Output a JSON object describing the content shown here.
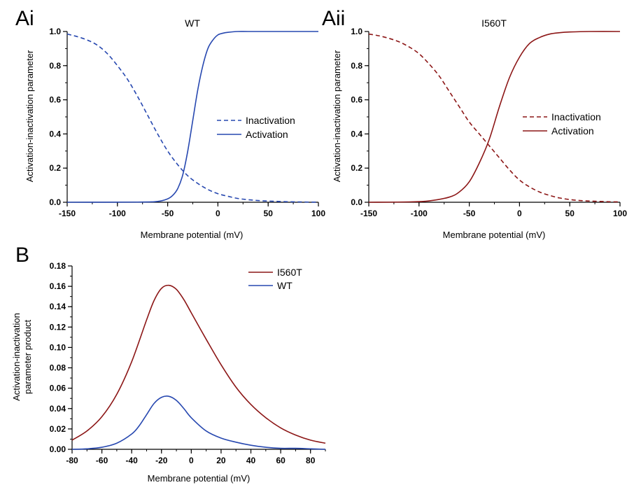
{
  "colors": {
    "wt": "#2748b0",
    "i560t": "#8c1616",
    "axis": "#000000"
  },
  "panels": {
    "ai": {
      "letter": "Ai",
      "title": "WT",
      "xlabel": "Membrane potential (mV)",
      "ylabel": "Activation-inactivation parameter",
      "legend": {
        "inactivation": "Inactivation",
        "activation": "Activation"
      }
    },
    "aii": {
      "letter": "Aii",
      "title": "I560T",
      "xlabel": "Membrane potential (mV)",
      "ylabel": "Activation-inactivation parameter",
      "legend": {
        "inactivation": "Inactivation",
        "activation": "Activation"
      }
    },
    "b": {
      "letter": "B",
      "xlabel": "Membrane potential (mV)",
      "ylabel_line1": "Activation-inactivation",
      "ylabel_line2": "parameter product",
      "legend": {
        "i560t": "I560T",
        "wt": "WT"
      }
    }
  },
  "chart_data": [
    {
      "panel": "Ai",
      "type": "line",
      "title": "WT",
      "xlabel": "Membrane potential (mV)",
      "ylabel": "Activation-inactivation parameter",
      "xlim": [
        -150,
        100
      ],
      "ylim": [
        0,
        1.0
      ],
      "xticks": [
        "-150",
        "-100",
        "-50",
        "0",
        "50",
        "100"
      ],
      "yticks": [
        "0.0",
        "0.2",
        "0.4",
        "0.6",
        "0.8",
        "1.0"
      ],
      "legend_position": "middle-right",
      "series": [
        {
          "name": "Inactivation",
          "style": "dashed",
          "color": "#2748b0",
          "x": [
            -150,
            -140,
            -130,
            -120,
            -110,
            -100,
            -90,
            -80,
            -70,
            -60,
            -50,
            -40,
            -30,
            -20,
            -10,
            0,
            10,
            20,
            30,
            40,
            50,
            60,
            70,
            80,
            90,
            100
          ],
          "y": [
            0.985,
            0.97,
            0.95,
            0.92,
            0.87,
            0.8,
            0.72,
            0.62,
            0.51,
            0.4,
            0.3,
            0.22,
            0.155,
            0.11,
            0.075,
            0.05,
            0.035,
            0.022,
            0.015,
            0.01,
            0.007,
            0.005,
            0.003,
            0.002,
            0.001,
            0.001
          ]
        },
        {
          "name": "Activation",
          "style": "solid",
          "color": "#2748b0",
          "x": [
            -150,
            -80,
            -60,
            -50,
            -45,
            -40,
            -35,
            -30,
            -25,
            -20,
            -15,
            -10,
            -5,
            0,
            5,
            10,
            20,
            30,
            50,
            100
          ],
          "y": [
            0.0,
            0.001,
            0.005,
            0.02,
            0.04,
            0.08,
            0.16,
            0.3,
            0.48,
            0.66,
            0.8,
            0.9,
            0.95,
            0.98,
            0.99,
            0.995,
            1.0,
            1.0,
            1.0,
            1.0
          ]
        }
      ]
    },
    {
      "panel": "Aii",
      "type": "line",
      "title": "I560T",
      "xlabel": "Membrane potential (mV)",
      "ylabel": "Activation-inactivation parameter",
      "xlim": [
        -150,
        100
      ],
      "ylim": [
        0,
        1.0
      ],
      "xticks": [
        "-150",
        "-100",
        "-50",
        "0",
        "50",
        "100"
      ],
      "yticks": [
        "0.0",
        "0.2",
        "0.4",
        "0.6",
        "0.8",
        "1.0"
      ],
      "legend_position": "middle-right",
      "series": [
        {
          "name": "Inactivation",
          "style": "dashed",
          "color": "#8c1616",
          "x": [
            -150,
            -140,
            -130,
            -120,
            -110,
            -100,
            -90,
            -80,
            -70,
            -60,
            -50,
            -40,
            -30,
            -20,
            -10,
            0,
            10,
            20,
            30,
            40,
            50,
            60,
            70,
            80,
            90,
            100
          ],
          "y": [
            0.985,
            0.975,
            0.96,
            0.94,
            0.91,
            0.87,
            0.81,
            0.74,
            0.65,
            0.56,
            0.47,
            0.4,
            0.33,
            0.26,
            0.19,
            0.13,
            0.09,
            0.06,
            0.04,
            0.025,
            0.016,
            0.01,
            0.007,
            0.005,
            0.003,
            0.002
          ]
        },
        {
          "name": "Activation",
          "style": "solid",
          "color": "#8c1616",
          "x": [
            -150,
            -110,
            -90,
            -70,
            -60,
            -50,
            -40,
            -30,
            -20,
            -10,
            0,
            10,
            20,
            30,
            40,
            50,
            70,
            100
          ],
          "y": [
            0.0,
            0.002,
            0.008,
            0.03,
            0.06,
            0.12,
            0.23,
            0.37,
            0.56,
            0.73,
            0.85,
            0.93,
            0.965,
            0.985,
            0.993,
            0.997,
            1.0,
            1.0
          ]
        }
      ]
    },
    {
      "panel": "B",
      "type": "line",
      "xlabel": "Membrane potential (mV)",
      "ylabel": "Activation-inactivation parameter product",
      "xlim": [
        -80,
        90
      ],
      "ylim": [
        0,
        0.18
      ],
      "xticks": [
        "-80",
        "-60",
        "-40",
        "-20",
        "0",
        "20",
        "40",
        "60",
        "80"
      ],
      "yticks": [
        "0.00",
        "0.02",
        "0.04",
        "0.06",
        "0.08",
        "0.10",
        "0.12",
        "0.14",
        "0.16",
        "0.18"
      ],
      "legend_position": "top-center",
      "series": [
        {
          "name": "I560T",
          "color": "#8c1616",
          "x": [
            -80,
            -70,
            -60,
            -50,
            -40,
            -30,
            -25,
            -20,
            -15,
            -10,
            -5,
            0,
            10,
            20,
            30,
            40,
            50,
            60,
            70,
            80,
            90
          ],
          "y": [
            0.009,
            0.018,
            0.032,
            0.054,
            0.086,
            0.127,
            0.146,
            0.158,
            0.161,
            0.157,
            0.147,
            0.134,
            0.108,
            0.083,
            0.061,
            0.044,
            0.031,
            0.021,
            0.014,
            0.009,
            0.006
          ]
        },
        {
          "name": "WT",
          "color": "#2748b0",
          "x": [
            -80,
            -70,
            -60,
            -50,
            -40,
            -35,
            -30,
            -25,
            -20,
            -15,
            -10,
            -5,
            0,
            10,
            20,
            30,
            40,
            50,
            60,
            70,
            80,
            90
          ],
          "y": [
            0.0,
            0.0005,
            0.002,
            0.006,
            0.015,
            0.023,
            0.034,
            0.045,
            0.051,
            0.052,
            0.048,
            0.04,
            0.031,
            0.018,
            0.011,
            0.007,
            0.004,
            0.002,
            0.001,
            0.001,
            0.0005,
            0.0
          ]
        }
      ]
    }
  ]
}
